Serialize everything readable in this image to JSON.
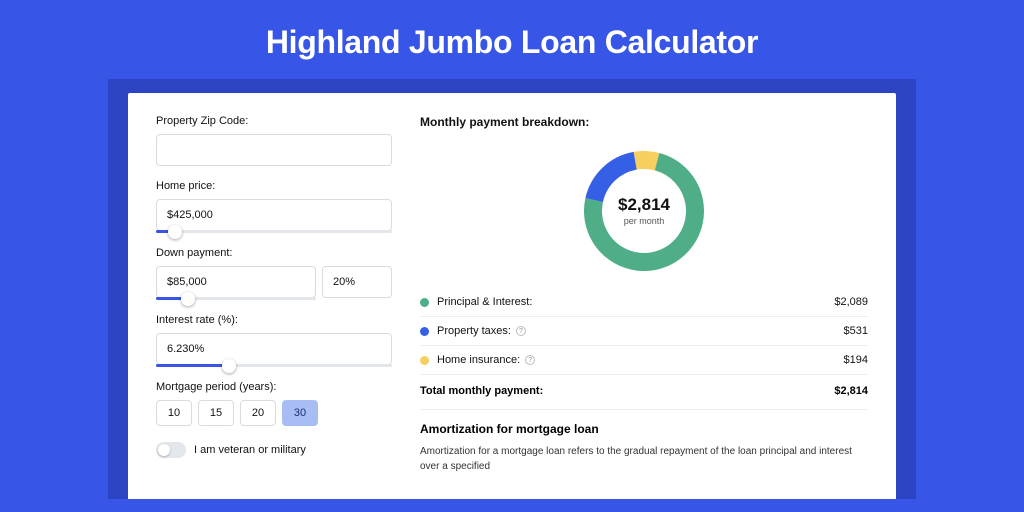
{
  "colors": {
    "page_bg": "#3755e6",
    "band_bg": "#2c44c4",
    "card_bg": "#ffffff",
    "input_border": "#d8dbe0",
    "slider_track": "#e3e6eb",
    "slider_fill": "#3755e6",
    "period_active_bg": "#a8bdf4",
    "divider": "#eceef2"
  },
  "title": "Highland Jumbo Loan Calculator",
  "form": {
    "zip": {
      "label": "Property Zip Code:",
      "value": ""
    },
    "home_price": {
      "label": "Home price:",
      "value": "$425,000",
      "slider_pct": 8
    },
    "down_payment": {
      "label": "Down payment:",
      "value": "$85,000",
      "pct_value": "20%",
      "slider_pct": 20
    },
    "interest_rate": {
      "label": "Interest rate (%):",
      "value": "6.230%",
      "slider_pct": 31
    },
    "mortgage_period": {
      "label": "Mortgage period (years):",
      "options": [
        "10",
        "15",
        "20",
        "30"
      ],
      "active_index": 3
    },
    "veteran": {
      "label": "I am veteran or military",
      "on": false
    }
  },
  "breakdown": {
    "heading": "Monthly payment breakdown:",
    "donut": {
      "center_value": "$2,814",
      "center_sub": "per month",
      "segments": [
        {
          "name": "principal",
          "color": "#4fae87",
          "pct": 74.2
        },
        {
          "name": "taxes",
          "color": "#355fe5",
          "pct": 18.9
        },
        {
          "name": "insurance",
          "color": "#f6cf5f",
          "pct": 6.9
        }
      ],
      "ring_thickness": 18,
      "outer_radius": 60,
      "bg": "#ffffff"
    },
    "legend": [
      {
        "dot": "#4fae87",
        "label": "Principal & Interest:",
        "info": false,
        "value": "$2,089"
      },
      {
        "dot": "#355fe5",
        "label": "Property taxes:",
        "info": true,
        "value": "$531"
      },
      {
        "dot": "#f6cf5f",
        "label": "Home insurance:",
        "info": true,
        "value": "$194"
      }
    ],
    "total": {
      "label": "Total monthly payment:",
      "value": "$2,814"
    }
  },
  "amortization": {
    "heading": "Amortization for mortgage loan",
    "text": "Amortization for a mortgage loan refers to the gradual repayment of the loan principal and interest over a specified"
  }
}
